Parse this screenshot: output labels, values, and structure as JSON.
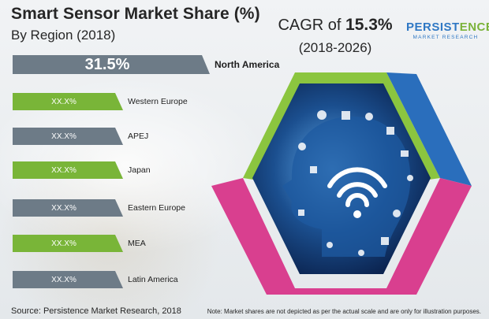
{
  "header": {
    "title": "Smart Sensor Market Share (%)",
    "subtitle": "By Region (2018)",
    "cagr_label": "CAGR of ",
    "cagr_value": "15.3%",
    "cagr_period": "(2018-2026)"
  },
  "logo": {
    "text_main": "PERSIST",
    "text_accent": "ENCE",
    "tagline": "MARKET RESEARCH"
  },
  "colors": {
    "gray": "#6d7b87",
    "green": "#79b538",
    "ring_green": "#8bc53f",
    "ring_blue": "#2a6ebc",
    "ring_pink": "#d93f8f"
  },
  "chart_data": {
    "type": "bar",
    "title": "Smart Sensor Market Share (%)",
    "subtitle": "By Region (2018)",
    "categories": [
      "North America",
      "Western Europe",
      "APEJ",
      "Japan",
      "Eastern Europe",
      "MEA",
      "Latin America"
    ],
    "value_labels": [
      "31.5%",
      "XX.X%",
      "XX.X%",
      "XX.X%",
      "XX.X%",
      "XX.X%",
      "XX.X%"
    ],
    "values": [
      31.5,
      null,
      null,
      null,
      null,
      null,
      null
    ],
    "bar_colors": [
      "gray",
      "green",
      "gray",
      "green",
      "gray",
      "green",
      "gray"
    ]
  },
  "footer": {
    "source": "Source: Persistence Market Research, 2018",
    "note": "Note: Market shares are not depicted as per the actual scale and are only for illustration purposes."
  }
}
